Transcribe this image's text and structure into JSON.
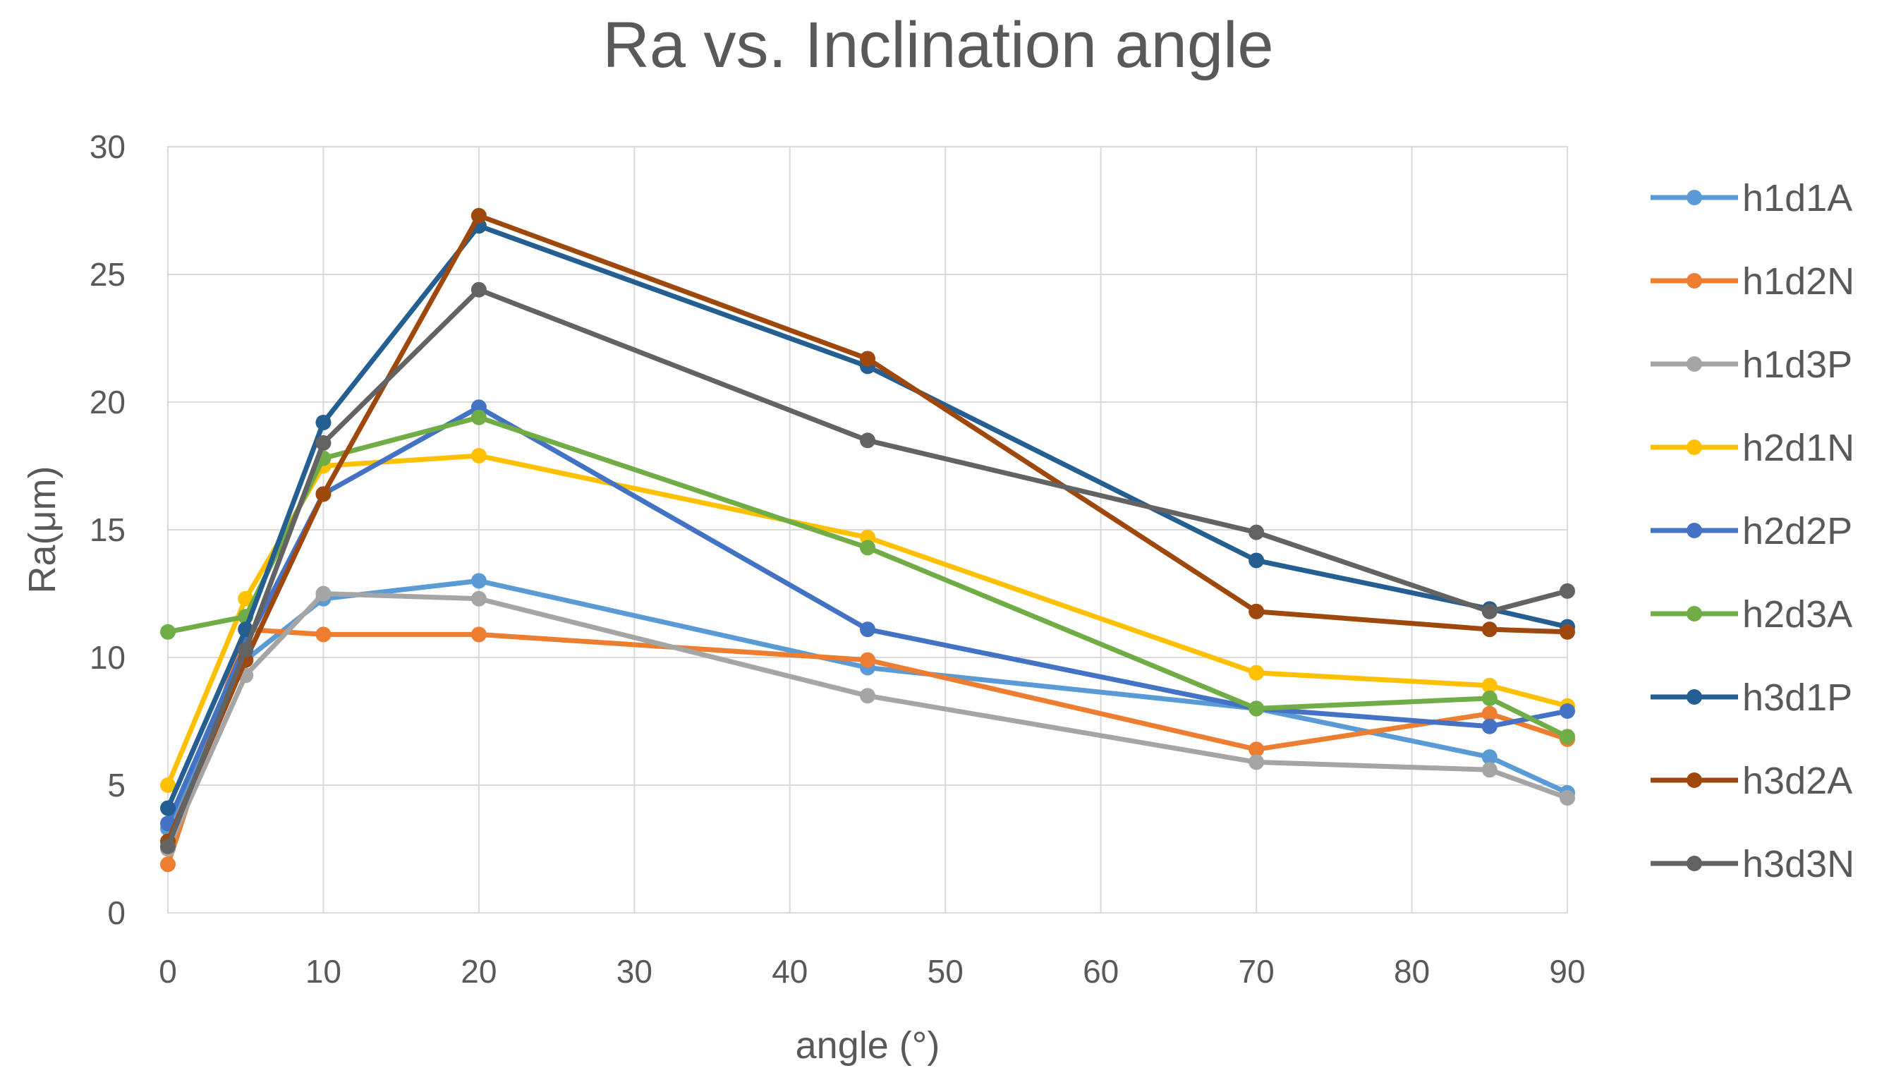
{
  "chart_data": {
    "type": "line",
    "title": "Ra vs. Inclination angle",
    "xlabel": "angle (°)",
    "ylabel": "Ra(μm)",
    "xlim": [
      0,
      90
    ],
    "ylim": [
      0,
      30
    ],
    "xticks": [
      "0",
      "10",
      "20",
      "30",
      "40",
      "50",
      "60",
      "70",
      "80",
      "90"
    ],
    "yticks": [
      "0",
      "5",
      "10",
      "15",
      "20",
      "25",
      "30"
    ],
    "grid": true,
    "legend_position": "right",
    "x": [
      0,
      5,
      10,
      20,
      45,
      70,
      85,
      90
    ],
    "series": [
      {
        "name": "h1d1A",
        "color": "#5b9bd5",
        "values": [
          3.3,
          9.9,
          12.3,
          13.0,
          9.6,
          8.0,
          6.1,
          4.7
        ]
      },
      {
        "name": "h1d2N",
        "color": "#ed7d31",
        "values": [
          1.9,
          11.1,
          10.9,
          10.9,
          9.9,
          6.4,
          7.8,
          6.8
        ]
      },
      {
        "name": "h1d3P",
        "color": "#a5a5a5",
        "values": [
          2.5,
          9.3,
          12.5,
          12.3,
          8.5,
          5.9,
          5.6,
          4.5
        ]
      },
      {
        "name": "h2d1N",
        "color": "#ffc000",
        "values": [
          5.0,
          12.3,
          17.5,
          17.9,
          14.7,
          9.4,
          8.9,
          8.1
        ]
      },
      {
        "name": "h2d2P",
        "color": "#4472c4",
        "values": [
          3.5,
          10.5,
          16.4,
          19.8,
          11.1,
          8.0,
          7.3,
          7.9
        ]
      },
      {
        "name": "h2d3A",
        "color": "#70ad47",
        "values": [
          11.0,
          11.6,
          17.8,
          19.4,
          14.3,
          8.0,
          8.4,
          6.9
        ]
      },
      {
        "name": "h3d1P",
        "color": "#255e91",
        "values": [
          4.1,
          11.1,
          19.2,
          26.9,
          21.4,
          13.8,
          11.9,
          11.2
        ]
      },
      {
        "name": "h3d2A",
        "color": "#9e480e",
        "values": [
          2.8,
          9.9,
          16.4,
          27.3,
          21.7,
          11.8,
          11.1,
          11.0
        ]
      },
      {
        "name": "h3d3N",
        "color": "#636363",
        "values": [
          2.6,
          10.3,
          18.4,
          24.4,
          18.5,
          14.9,
          11.8,
          12.6
        ]
      }
    ]
  }
}
